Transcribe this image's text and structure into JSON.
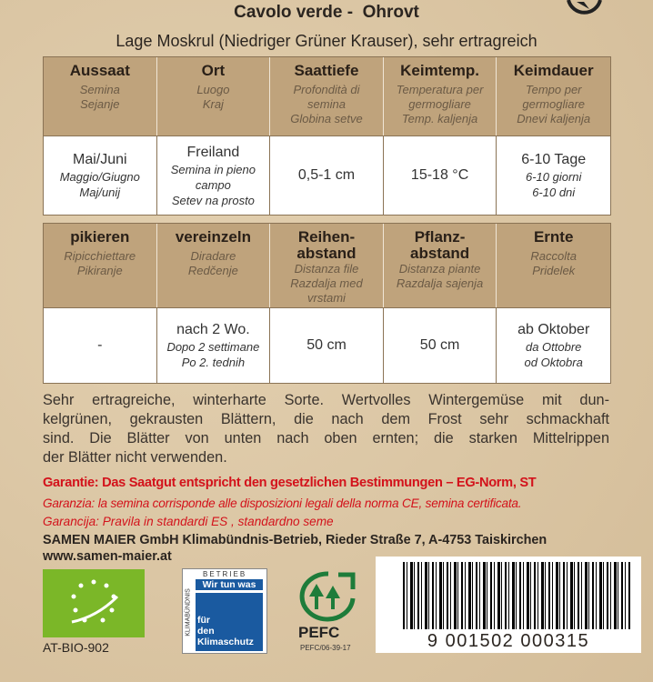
{
  "header": {
    "title": "Cavolo verde -  Ohrovt",
    "subtitle": "Lage Moskrul (Niedriger Grüner Krauser), sehr ertragreich"
  },
  "tables": [
    {
      "columns": [
        {
          "title": [
            "Aussaat"
          ],
          "sub": [
            "Semina",
            "Sejanje"
          ],
          "cell": [
            "Mai/Juni",
            "Maggio/Giugno",
            "Maj/unij"
          ]
        },
        {
          "title": [
            "Ort"
          ],
          "sub": [
            "Luogo",
            "Kraj"
          ],
          "cell": [
            "Freiland",
            "Semina in pieno campo",
            "Setev na prosto"
          ]
        },
        {
          "title": [
            "Saattiefe"
          ],
          "sub": [
            "Profondità di semina",
            "Globina setve"
          ],
          "cell": [
            "0,5-1 cm"
          ]
        },
        {
          "title": [
            "Keimtemp."
          ],
          "sub": [
            "Temperatura per germogliare",
            "Temp. kaljenja"
          ],
          "cell": [
            "15-18 °C"
          ]
        },
        {
          "title": [
            "Keimdauer"
          ],
          "sub": [
            "Tempo per germogliare",
            "Dnevi kaljenja"
          ],
          "cell": [
            "6-10 Tage",
            "6-10 giorni",
            "6-10 dni"
          ]
        }
      ]
    },
    {
      "columns": [
        {
          "title": [
            "pikieren"
          ],
          "sub": [
            "Ripicchiettare",
            "Pikiranje"
          ],
          "cell": [
            "-"
          ]
        },
        {
          "title": [
            "vereinzeln"
          ],
          "sub": [
            "Diradare",
            "Redčenje"
          ],
          "cell": [
            "nach 2 Wo.",
            "Dopo 2 settimane",
            "Po 2. tednih"
          ]
        },
        {
          "title": [
            "Reihen-",
            "abstand"
          ],
          "sub": [
            "Distanza file",
            "Razdalja med vrstami"
          ],
          "cell": [
            "50 cm"
          ]
        },
        {
          "title": [
            "Pflanz-",
            "abstand"
          ],
          "sub": [
            "Distanza piante",
            "Razdalja sajenja"
          ],
          "cell": [
            "50 cm"
          ]
        },
        {
          "title": [
            "Ernte"
          ],
          "sub": [
            "Raccolta",
            "Pridelek"
          ],
          "cell": [
            "ab Oktober",
            "da Ottobre",
            "od Oktobra"
          ]
        }
      ]
    }
  ],
  "description": [
    "Sehr ertragreiche, winterharte Sorte. Wertvolles Wintergemüse mit dun-",
    "kelgrünen, gekrausten Blättern, die nach dem Frost sehr schmackhaft",
    "sind. Die Blätter von unten nach oben ernten; die starken Mittelrippen",
    "der Blätter nicht verwenden."
  ],
  "guarantee": [
    "Garantie: Das Saatgut entspricht den gesetzlichen Bestimmungen – EG-Norm, ST",
    "Garanzia: la semina corrisponde alle disposizioni legali della norma CE, semina certificata.",
    "Garancija: Pravila in standardi ES , standardno seme"
  ],
  "company": {
    "address": "SAMEN MAIER GmbH Klimabündnis-Betrieb, Rieder Straße 7, A-4753 Taiskirchen",
    "website": "www.samen-maier.at"
  },
  "logos": {
    "bio_code": "AT-BIO-902",
    "klima_top": "BETRIEB",
    "klima_side": "KLIMABÜNDNIS",
    "klima_main": "Wir tun was",
    "klima_bottom": [
      "für",
      "den",
      "Klimaschutz"
    ],
    "pefc": "PEFC",
    "pefc_code": "PEFC/06-39-17",
    "barcode": "9 001502 000315"
  }
}
